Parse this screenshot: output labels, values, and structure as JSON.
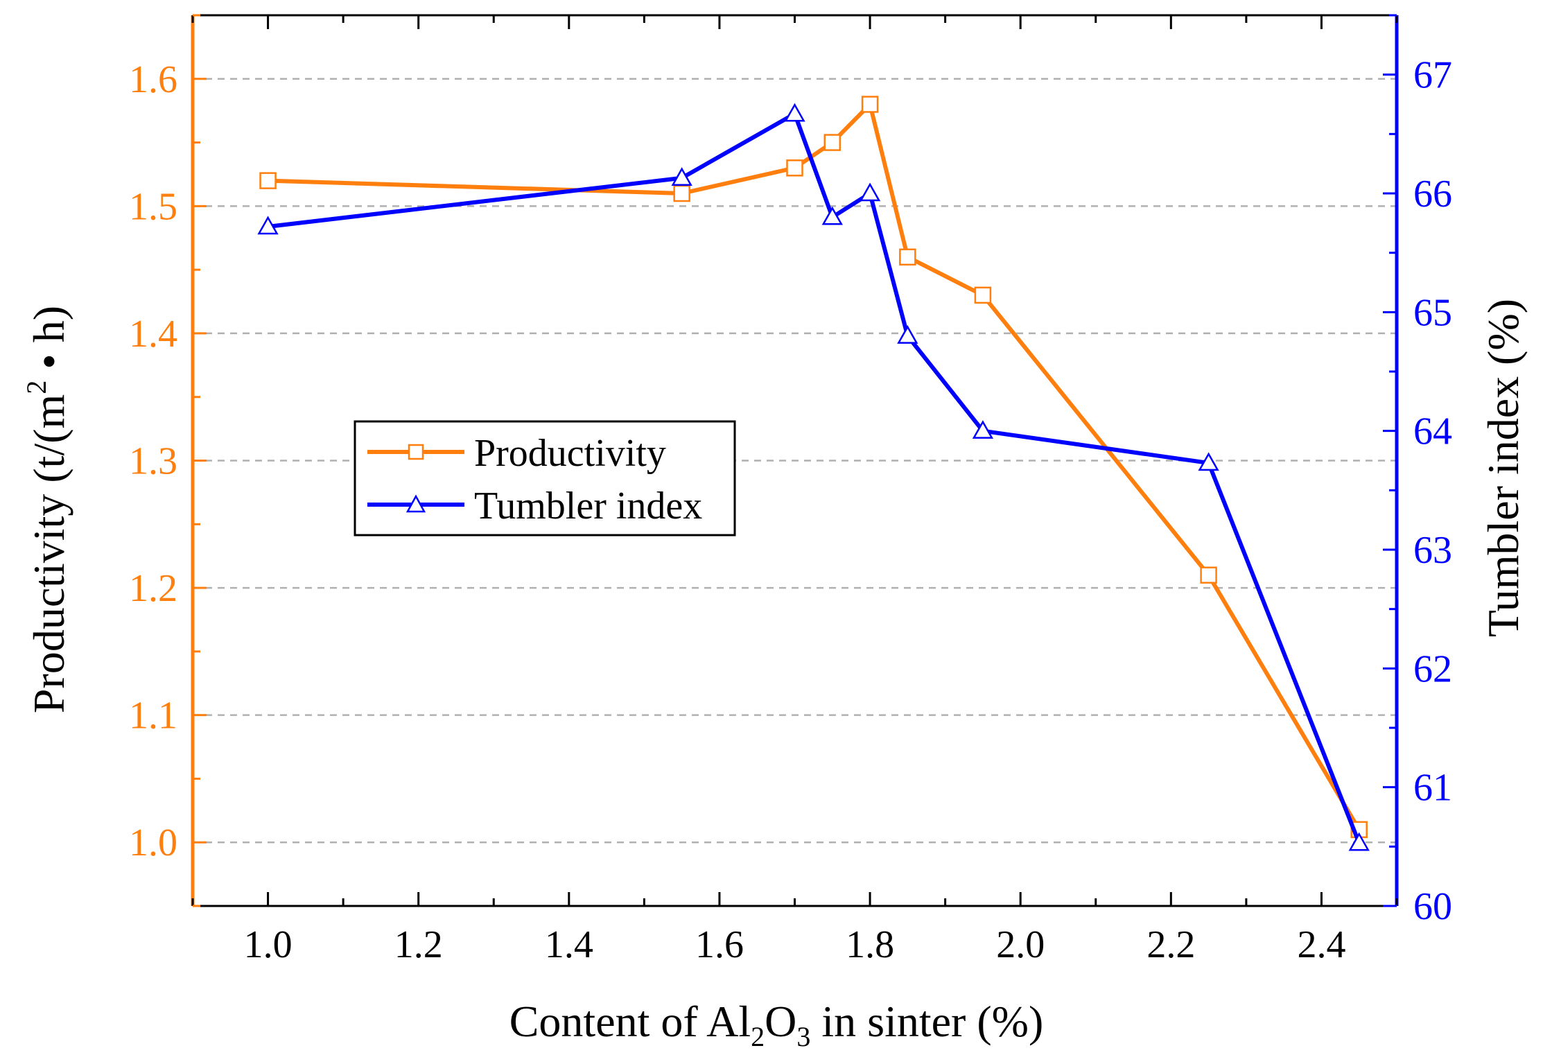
{
  "chart_data": {
    "type": "line",
    "title": "",
    "xlabel": {
      "before": "Content of Al",
      "sub1": "2",
      "mid": "O",
      "sub2": "3",
      "after": " in sinter (%)"
    },
    "ylabel_left": {
      "before": "Productivity (t/(m",
      "sup": "2",
      "after": " • h)"
    },
    "ylabel_right": "Tumbler index (%)",
    "xlim": [
      0.9,
      2.5
    ],
    "ylim_left": [
      0.95,
      1.65
    ],
    "ylim_right": [
      60,
      67.5
    ],
    "x_ticks": [
      1.0,
      1.2,
      1.4,
      1.6,
      1.8,
      2.0,
      2.2,
      2.4
    ],
    "x_tick_labels": [
      "1.0",
      "1.2",
      "1.4",
      "1.6",
      "1.8",
      "2.0",
      "2.2",
      "2.4"
    ],
    "y_left_ticks": [
      1.0,
      1.1,
      1.2,
      1.3,
      1.4,
      1.5,
      1.6
    ],
    "y_left_tick_labels": [
      "1.0",
      "1.1",
      "1.2",
      "1.3",
      "1.4",
      "1.5",
      "1.6"
    ],
    "y_right_ticks": [
      60,
      61,
      62,
      63,
      64,
      65,
      66,
      67
    ],
    "y_right_tick_labels": [
      "60",
      "61",
      "62",
      "63",
      "64",
      "65",
      "66",
      "67"
    ],
    "grid": "horizontal dashed",
    "legend_position": "center-left",
    "colors": {
      "productivity": "#ff7f0e",
      "tumbler": "#0000ff",
      "left_axis": "#ff7f0e",
      "right_axis": "#0000ff",
      "grid": "#b0b0b0",
      "text": "#000000"
    },
    "series": [
      {
        "name": "Productivity",
        "axis": "left",
        "marker": "square",
        "x": [
          1.0,
          1.55,
          1.7,
          1.75,
          1.8,
          1.85,
          1.95,
          2.25,
          2.45
        ],
        "values": [
          1.52,
          1.51,
          1.53,
          1.55,
          1.58,
          1.46,
          1.43,
          1.21,
          1.01
        ]
      },
      {
        "name": "Tumbler index",
        "axis": "right",
        "marker": "triangle",
        "x": [
          1.0,
          1.55,
          1.7,
          1.75,
          1.8,
          1.85,
          1.95,
          2.25,
          2.45
        ],
        "values": [
          65.72,
          66.13,
          66.67,
          65.8,
          66.0,
          64.8,
          64.0,
          63.73,
          60.53
        ]
      }
    ]
  }
}
